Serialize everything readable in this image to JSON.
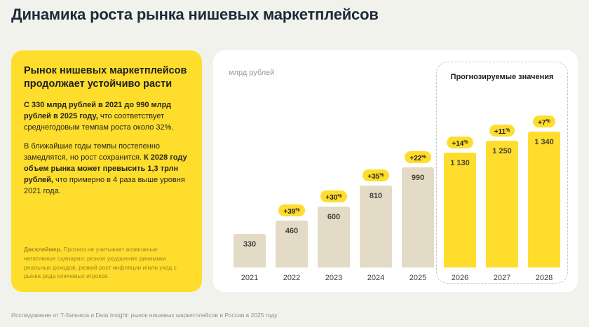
{
  "page": {
    "title": "Динамика роста рынка нишевых маркетплейсов",
    "footer": "Исследование от Т-Бизнеса и Data Insight: рынок нишевых маркетплейсов в России в 2025 году"
  },
  "summary_card": {
    "heading": "Рынок нишевых маркетплейсов продолжает устойчиво расти",
    "p1_bold": "С 330 млрд рублей в 2021 до 990 млрд рублей в 2025 году,",
    "p1_rest": " что соответствует среднегодовым темпам роста около 32%.",
    "p2_start": "В ближайшие годы темпы постепенно замедлятся, но рост сохранится. ",
    "p2_bold": "К 2028 году объем рынка может превысить 1,3 трлн рублей,",
    "p2_rest": " что примерно в 4 раза выше уровня 2021 года.",
    "disclaimer_label": "Дисклеймер.",
    "disclaimer_text": " Прогноз не учитывает возможные негативные сценарии: резкое ухудшение динамики реальных доходов, резкий рост инфляции и/или уход с рынка ряда ключевых игроков."
  },
  "chart": {
    "unit_label": "млрд рублей",
    "forecast_label": "Прогнозируемые значения"
  },
  "chart_data": {
    "type": "bar",
    "title": "Динамика роста рынка нишевых маркетплейсов",
    "ylabel": "млрд рублей",
    "categories": [
      "2021",
      "2022",
      "2023",
      "2024",
      "2025",
      "2026",
      "2027",
      "2028"
    ],
    "values": [
      330,
      460,
      600,
      810,
      990,
      1130,
      1250,
      1340
    ],
    "value_labels": [
      "330",
      "460",
      "600",
      "810",
      "990",
      "1 130",
      "1 250",
      "1 340"
    ],
    "growth_labels": [
      null,
      "+39%",
      "+30%",
      "+35%",
      "+22%",
      "+14%",
      "+11%",
      "+7%"
    ],
    "forecast_from_index": 5,
    "forecast_region_label": "Прогнозируемые значения",
    "colors": {
      "actual": "#e3dbc6",
      "forecast": "#ffdd2d"
    },
    "ylim": [
      0,
      1340
    ],
    "legend": "none",
    "grid": false
  }
}
